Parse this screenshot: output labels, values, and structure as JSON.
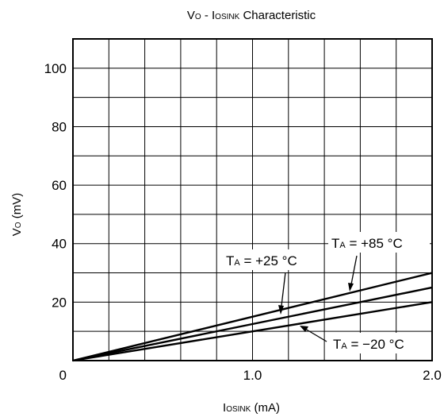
{
  "chart_data": {
    "type": "line",
    "title": "Vo - Io sink Characteristic",
    "title_parts": {
      "v": "V",
      "o": "O",
      "dash": " - I",
      "o2": "O",
      "sink": "SINK",
      "rest": " Characteristic"
    },
    "xlabel_parts": {
      "i": "I",
      "o": "O",
      "sink": "SINK",
      "rest": " (mA)"
    },
    "ylabel_parts": {
      "v": "V",
      "o": "O",
      "rest": " (mV)"
    },
    "xlim": [
      0,
      2.0
    ],
    "ylim": [
      0,
      110
    ],
    "x_ticks": [
      {
        "value": 0,
        "label": "0"
      },
      {
        "value": 1.0,
        "label": "1.0"
      },
      {
        "value": 2.0,
        "label": "2.0"
      }
    ],
    "y_ticks": [
      {
        "value": 20,
        "label": "20"
      },
      {
        "value": 40,
        "label": "40"
      },
      {
        "value": 60,
        "label": "60"
      },
      {
        "value": 80,
        "label": "80"
      },
      {
        "value": 100,
        "label": "100"
      }
    ],
    "grid": true,
    "series": [
      {
        "name": "TA = +85 °C",
        "label": {
          "t": "T",
          "a": "A",
          "rest": " = +85 °C"
        },
        "x": [
          0,
          2.0
        ],
        "y": [
          0,
          30
        ]
      },
      {
        "name": "TA = +25 °C",
        "label": {
          "t": "T",
          "a": "A",
          "rest": " = +25 °C"
        },
        "x": [
          0,
          2.0
        ],
        "y": [
          0,
          25
        ]
      },
      {
        "name": "TA = −20 °C",
        "label": {
          "t": "T",
          "a": "A",
          "rest": " = −20 °C"
        },
        "x": [
          0,
          2.0
        ],
        "y": [
          0,
          20
        ]
      }
    ]
  }
}
